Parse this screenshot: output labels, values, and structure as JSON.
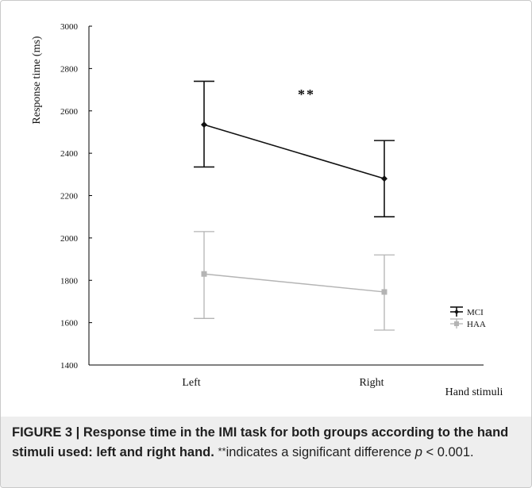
{
  "chart_data": {
    "type": "line",
    "xlabel": "Hand stimuli",
    "ylabel": "Response time (ms)",
    "categories": [
      "Left",
      "Right"
    ],
    "ylim": [
      1400,
      3000
    ],
    "yticks": [
      1400,
      1600,
      1800,
      2000,
      2200,
      2400,
      2600,
      2800,
      3000
    ],
    "annotation": "**",
    "legend_position": "bottom-right",
    "series": [
      {
        "name": "MCI",
        "color": "#111111",
        "marker": "diamond",
        "values": [
          2535,
          2280
        ],
        "error_low": [
          2335,
          2100
        ],
        "error_high": [
          2740,
          2460
        ]
      },
      {
        "name": "HAA",
        "color": "#b4b4b4",
        "marker": "square",
        "values": [
          1830,
          1745
        ],
        "error_low": [
          1620,
          1565
        ],
        "error_high": [
          2030,
          1920
        ]
      }
    ]
  },
  "caption": {
    "label": "FIGURE 3 | Response time in the IMI task for both groups according to the hand stimuli used: left and right hand.",
    "star": "**",
    "note_before_p": "indicates a significant difference",
    "p_symbol": "p",
    "note_after_p": " < 0.001."
  }
}
